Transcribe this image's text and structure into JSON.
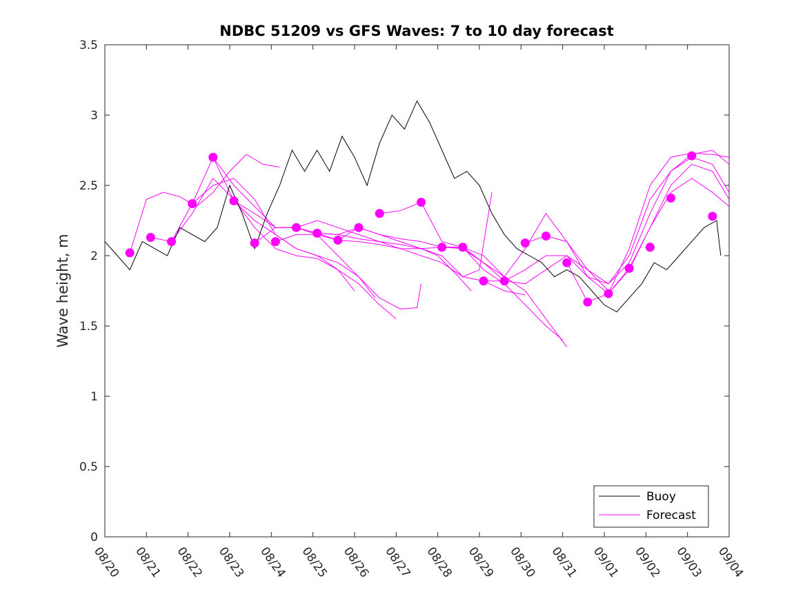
{
  "chart_data": {
    "type": "line",
    "title": "NDBC 51209 vs GFS Waves: 7 to 10 day forecast",
    "xlabel": "",
    "ylabel": "Wave height, m",
    "xlim": [
      0,
      15
    ],
    "ylim": [
      0,
      3.5
    ],
    "x_ticks": [
      {
        "pos": 0,
        "label": "08/20"
      },
      {
        "pos": 1,
        "label": "08/21"
      },
      {
        "pos": 2,
        "label": "08/22"
      },
      {
        "pos": 3,
        "label": "08/23"
      },
      {
        "pos": 4,
        "label": "08/24"
      },
      {
        "pos": 5,
        "label": "08/25"
      },
      {
        "pos": 6,
        "label": "08/26"
      },
      {
        "pos": 7,
        "label": "08/27"
      },
      {
        "pos": 8,
        "label": "08/28"
      },
      {
        "pos": 9,
        "label": "08/29"
      },
      {
        "pos": 10,
        "label": "08/30"
      },
      {
        "pos": 11,
        "label": "08/31"
      },
      {
        "pos": 12,
        "label": "09/01"
      },
      {
        "pos": 13,
        "label": "09/02"
      },
      {
        "pos": 14,
        "label": "09/03"
      },
      {
        "pos": 15,
        "label": "09/04"
      }
    ],
    "y_ticks": [
      {
        "value": 0,
        "label": "0"
      },
      {
        "value": 0.5,
        "label": "0.5"
      },
      {
        "value": 1,
        "label": "1"
      },
      {
        "value": 1.5,
        "label": "1.5"
      },
      {
        "value": 2,
        "label": "2"
      },
      {
        "value": 2.5,
        "label": "2.5"
      },
      {
        "value": 3,
        "label": "3"
      },
      {
        "value": 3.5,
        "label": "3.5"
      }
    ],
    "legend": {
      "position": "bottom-right",
      "entries": [
        {
          "label": "Buoy",
          "color": "#000000"
        },
        {
          "label": "Forecast",
          "color": "#ff00ff"
        }
      ]
    },
    "buoy": {
      "name": "Buoy",
      "color": "#000000",
      "x": [
        0,
        0.3,
        0.6,
        0.9,
        1.2,
        1.5,
        1.8,
        2.1,
        2.4,
        2.7,
        3.0,
        3.3,
        3.6,
        3.9,
        4.2,
        4.5,
        4.8,
        5.1,
        5.4,
        5.7,
        6.0,
        6.3,
        6.6,
        6.9,
        7.2,
        7.5,
        7.8,
        8.1,
        8.4,
        8.7,
        9.0,
        9.3,
        9.6,
        9.9,
        10.2,
        10.5,
        10.8,
        11.1,
        11.4,
        11.7,
        12.0,
        12.3,
        12.6,
        12.9,
        13.2,
        13.5,
        13.8,
        14.1,
        14.4,
        14.7,
        14.8
      ],
      "y": [
        2.1,
        2.0,
        1.9,
        2.1,
        2.05,
        2.0,
        2.2,
        2.15,
        2.1,
        2.2,
        2.5,
        2.3,
        2.05,
        2.3,
        2.5,
        2.75,
        2.6,
        2.75,
        2.6,
        2.85,
        2.7,
        2.5,
        2.8,
        3.0,
        2.9,
        3.1,
        2.95,
        2.75,
        2.55,
        2.6,
        2.5,
        2.3,
        2.15,
        2.05,
        2.0,
        1.95,
        1.85,
        1.9,
        1.85,
        1.75,
        1.65,
        1.6,
        1.7,
        1.8,
        1.95,
        1.9,
        2.0,
        2.1,
        2.2,
        2.25,
        2.0
      ]
    },
    "forecast_points": {
      "name": "Forecast",
      "color": "#ff00ff",
      "x": [
        0.6,
        1.1,
        1.6,
        2.1,
        2.6,
        3.1,
        3.6,
        4.1,
        4.6,
        5.1,
        5.6,
        6.1,
        6.6,
        7.6,
        8.1,
        8.6,
        9.1,
        9.6,
        10.1,
        10.6,
        11.1,
        11.6,
        12.1,
        12.6,
        13.1,
        13.6,
        14.1,
        14.6
      ],
      "y": [
        2.02,
        2.13,
        2.1,
        2.37,
        2.7,
        2.39,
        2.09,
        2.1,
        2.2,
        2.16,
        2.11,
        2.2,
        2.3,
        2.38,
        2.06,
        2.06,
        1.82,
        1.82,
        2.09,
        2.14,
        1.95,
        1.67,
        1.73,
        1.91,
        2.06,
        2.41,
        2.71,
        2.28
      ]
    },
    "forecast_lines": [
      {
        "name": "Forecast",
        "x": [
          0.6,
          1.0,
          1.4,
          1.8,
          2.2,
          2.6,
          3.0,
          3.4,
          3.8,
          4.2
        ],
        "y": [
          2.02,
          2.4,
          2.45,
          2.42,
          2.35,
          2.45,
          2.6,
          2.72,
          2.65,
          2.63
        ]
      },
      {
        "name": "Forecast",
        "x": [
          1.1,
          1.6,
          2.1,
          2.6,
          3.1,
          3.6,
          4.1,
          4.6,
          5.1,
          5.6,
          6.0
        ],
        "y": [
          2.13,
          2.1,
          2.3,
          2.55,
          2.4,
          2.2,
          2.05,
          2.0,
          1.98,
          1.9,
          1.75
        ]
      },
      {
        "name": "Forecast",
        "x": [
          1.6,
          2.1,
          2.6,
          3.1,
          3.6,
          4.1,
          4.6,
          5.1,
          5.6,
          6.1,
          6.5
        ],
        "y": [
          2.1,
          2.37,
          2.5,
          2.55,
          2.4,
          2.15,
          2.05,
          2.0,
          1.95,
          1.85,
          1.7
        ]
      },
      {
        "name": "Forecast",
        "x": [
          2.1,
          2.6,
          3.1,
          3.6,
          4.1,
          4.6,
          5.1,
          5.6,
          6.1,
          6.6,
          7.0
        ],
        "y": [
          2.37,
          2.7,
          2.39,
          2.25,
          2.15,
          2.05,
          2.0,
          1.9,
          1.8,
          1.65,
          1.55
        ]
      },
      {
        "name": "Forecast",
        "x": [
          2.6,
          3.1,
          3.6,
          4.1,
          4.6,
          5.1,
          5.6,
          6.1,
          6.6,
          7.1,
          7.5,
          7.6
        ],
        "y": [
          2.7,
          2.5,
          2.35,
          2.2,
          2.2,
          2.15,
          2.0,
          1.85,
          1.7,
          1.62,
          1.63,
          1.8
        ]
      },
      {
        "name": "Forecast",
        "x": [
          3.1,
          3.6,
          4.1,
          4.6,
          5.1,
          5.6,
          6.1,
          6.6,
          7.1,
          7.6,
          8.0,
          8.5,
          8.8
        ],
        "y": [
          2.39,
          2.3,
          2.2,
          2.2,
          2.25,
          2.2,
          2.15,
          2.1,
          2.08,
          2.05,
          2.0,
          1.85,
          1.75
        ]
      },
      {
        "name": "Forecast",
        "x": [
          3.6,
          4.1,
          4.6,
          5.1,
          5.6,
          6.1,
          6.6,
          7.1,
          7.6,
          8.1,
          8.6,
          9.0,
          9.3
        ],
        "y": [
          2.09,
          2.2,
          2.2,
          2.16,
          2.15,
          2.12,
          2.1,
          2.05,
          2.05,
          2.0,
          1.85,
          1.9,
          2.45
        ]
      },
      {
        "name": "Forecast",
        "x": [
          4.1,
          4.6,
          5.1,
          5.6,
          6.1,
          6.6,
          7.1,
          7.6,
          8.1,
          8.6,
          9.1,
          9.6,
          10.1
        ],
        "y": [
          2.1,
          2.15,
          2.15,
          2.11,
          2.1,
          2.08,
          2.05,
          2.0,
          1.95,
          1.85,
          1.82,
          1.75,
          1.72
        ]
      },
      {
        "name": "Forecast",
        "x": [
          4.6,
          5.1,
          5.6,
          6.1,
          6.6,
          7.1,
          7.6,
          8.1,
          8.6,
          9.1,
          9.6,
          10.1,
          10.6,
          11.0
        ],
        "y": [
          2.2,
          2.16,
          2.15,
          2.2,
          2.15,
          2.12,
          2.1,
          2.06,
          2.06,
          1.9,
          1.8,
          1.65,
          1.5,
          1.4
        ]
      },
      {
        "name": "Forecast",
        "x": [
          5.1,
          5.6,
          6.1,
          6.6,
          7.1,
          7.6,
          8.1,
          8.6,
          9.1,
          9.6,
          10.1,
          10.6,
          11.1
        ],
        "y": [
          2.16,
          2.11,
          2.2,
          2.15,
          2.1,
          2.05,
          2.06,
          2.05,
          1.95,
          1.85,
          1.75,
          1.55,
          1.35
        ]
      },
      {
        "name": "Forecast",
        "x": [
          6.6,
          7.1,
          7.6,
          8.1,
          8.6,
          9.1,
          9.6,
          10.1,
          10.6,
          11.1,
          11.6,
          12.1
        ],
        "y": [
          2.3,
          2.32,
          2.38,
          2.1,
          2.06,
          2.0,
          1.85,
          2.05,
          2.3,
          2.1,
          1.9,
          1.75
        ]
      },
      {
        "name": "Forecast",
        "x": [
          8.1,
          8.6,
          9.1,
          9.6,
          10.1,
          10.6,
          11.1,
          11.6,
          12.1,
          12.6,
          13.1,
          13.6,
          14.1,
          14.6,
          15.0
        ],
        "y": [
          2.06,
          2.06,
          1.95,
          1.82,
          1.8,
          1.9,
          2.0,
          1.9,
          1.8,
          2.0,
          2.4,
          2.6,
          2.72,
          2.75,
          2.65
        ]
      },
      {
        "name": "Forecast",
        "x": [
          9.1,
          9.6,
          10.1,
          10.6,
          11.1,
          11.6,
          12.1,
          12.6,
          13.1,
          13.6,
          14.1,
          14.6,
          15.0
        ],
        "y": [
          1.82,
          1.82,
          1.9,
          2.0,
          2.0,
          1.85,
          1.73,
          1.9,
          2.2,
          2.5,
          2.65,
          2.6,
          2.4
        ]
      },
      {
        "name": "Forecast",
        "x": [
          10.1,
          10.6,
          11.1,
          11.6,
          12.1,
          12.6,
          13.1,
          13.6,
          14.1,
          14.6,
          15.0
        ],
        "y": [
          2.09,
          2.14,
          2.1,
          1.85,
          1.8,
          1.95,
          2.3,
          2.6,
          2.7,
          2.65,
          2.45
        ]
      },
      {
        "name": "Forecast",
        "x": [
          11.1,
          11.6,
          12.1,
          12.6,
          13.1,
          13.6,
          14.1,
          14.6,
          15.0
        ],
        "y": [
          1.95,
          1.67,
          1.73,
          2.05,
          2.5,
          2.7,
          2.73,
          2.72,
          2.7
        ]
      },
      {
        "name": "Forecast",
        "x": [
          12.1,
          12.6,
          13.1,
          13.6,
          14.1,
          14.6,
          15.0
        ],
        "y": [
          1.73,
          1.91,
          2.2,
          2.45,
          2.55,
          2.45,
          2.35
        ]
      }
    ]
  }
}
